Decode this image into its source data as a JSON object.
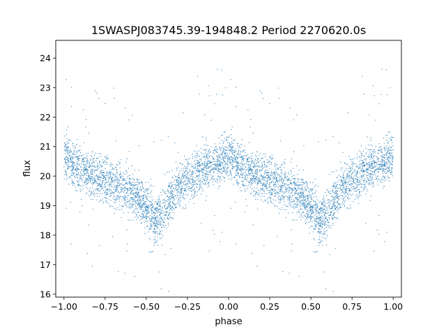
{
  "chart_data": {
    "type": "scatter",
    "title": "1SWASPJ083745.39-194848.2 Period 2270620.0s",
    "xlabel": "phase",
    "ylabel": "flux",
    "xlim": [
      -1.05,
      1.05
    ],
    "ylim": [
      15.9,
      24.6
    ],
    "xticks": [
      -1.0,
      -0.75,
      -0.5,
      -0.25,
      0.0,
      0.25,
      0.5,
      0.75,
      1.0
    ],
    "xtick_labels": [
      "−1.00",
      "−0.75",
      "−0.50",
      "−0.25",
      "0.00",
      "0.25",
      "0.50",
      "0.75",
      "1.00"
    ],
    "yticks": [
      16,
      17,
      18,
      19,
      20,
      21,
      22,
      23,
      24
    ],
    "ytick_labels": [
      "16",
      "17",
      "18",
      "19",
      "20",
      "21",
      "22",
      "23",
      "24"
    ],
    "grid": false,
    "legend": "none",
    "marker_color": "#1f77b4",
    "series": [
      {
        "description": "phase-folded light curve, repeated for phase -1..0 and 0..1",
        "trend_phase": [
          0.0,
          0.05,
          0.1,
          0.15,
          0.2,
          0.25,
          0.3,
          0.35,
          0.4,
          0.45,
          0.5,
          0.55,
          0.6,
          0.65,
          0.7,
          0.75,
          0.8,
          0.85,
          0.9,
          0.95,
          1.0
        ],
        "trend_flux": [
          20.7,
          20.4,
          20.2,
          20.1,
          20.0,
          19.9,
          19.7,
          19.6,
          19.5,
          19.3,
          18.9,
          18.5,
          18.7,
          19.2,
          19.6,
          19.9,
          20.1,
          20.3,
          20.4,
          20.5,
          20.7
        ],
        "flux_spread": 0.55
      }
    ]
  }
}
